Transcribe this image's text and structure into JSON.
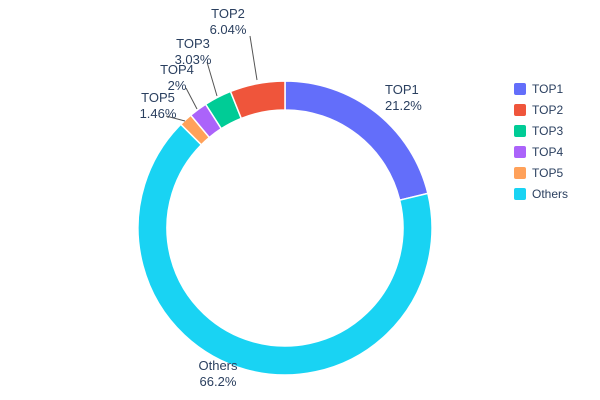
{
  "chart_data": {
    "type": "pie",
    "subtype": "donut",
    "hole_ratio": 0.8,
    "labels": [
      "TOP1",
      "TOP2",
      "TOP3",
      "TOP4",
      "TOP5",
      "Others"
    ],
    "values": [
      21.2,
      6.04,
      3.03,
      2.0,
      1.46,
      66.2
    ],
    "percent_labels": [
      "21.2%",
      "6.04%",
      "3.03%",
      "2%",
      "1.46%",
      "66.2%"
    ],
    "colors": [
      "#636EFA",
      "#EF553B",
      "#00CC96",
      "#AB63FA",
      "#FFA15A",
      "#19D3F3"
    ],
    "draw_order": [
      "TOP1",
      "Others",
      "TOP5",
      "TOP4",
      "TOP3",
      "TOP2"
    ],
    "direction": "clockwise",
    "start_angle_deg": 0,
    "legend_position": "right",
    "text_color": "#2a3f5f",
    "background_color": "#ffffff"
  },
  "callouts": {
    "top1": {
      "title": "TOP1",
      "value": "21.2%"
    },
    "top2": {
      "title": "TOP2",
      "value": "6.04%"
    },
    "top3": {
      "title": "TOP3",
      "value": "3.03%"
    },
    "top4": {
      "title": "TOP4",
      "value": "2%"
    },
    "top5": {
      "title": "TOP5",
      "value": "1.46%"
    },
    "others": {
      "title": "Others",
      "value": "66.2%"
    }
  }
}
